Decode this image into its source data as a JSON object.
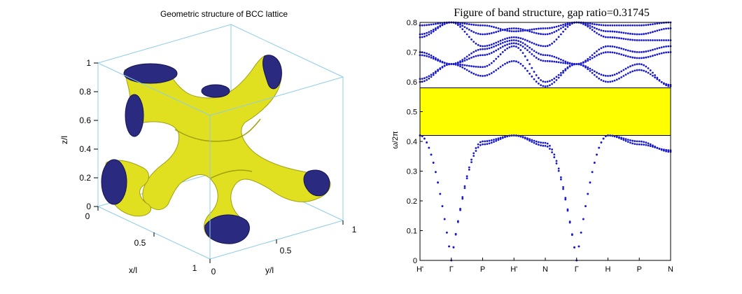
{
  "colors": {
    "surface": "#e0e020",
    "surface_shade": "#a0a010",
    "cap": "#2a2a80",
    "cap_dark": "#141450",
    "box_edge": "#8ecde6",
    "band_points": "#1a1acc",
    "gap_fill": "#ffff00",
    "axis": "#000000"
  },
  "chart_data": [
    {
      "type": "3d-surface",
      "title": "Geometric structure of BCC lattice",
      "xlabel": "x/l",
      "ylabel": "y/l",
      "zlabel": "z/l",
      "xlim": [
        0,
        1
      ],
      "ylim": [
        0,
        1
      ],
      "zlim": [
        0,
        1
      ],
      "x_ticks": [
        "0",
        "0.5",
        "1"
      ],
      "y_ticks": [
        "0",
        "0.5",
        "1"
      ],
      "z_ticks": [
        "0",
        "0.2",
        "0.4",
        "0.6",
        "0.8",
        "1"
      ]
    },
    {
      "type": "scatter",
      "title": "Figure of band structure, gap ratio=0.31745",
      "xlabel": "",
      "ylabel": "ω/2π",
      "ylim": [
        0,
        0.8
      ],
      "y_ticks": [
        "0",
        "0.1",
        "0.2",
        "0.3",
        "0.4",
        "0.5",
        "0.6",
        "0.7",
        "0.8"
      ],
      "k_labels": [
        "H'",
        "Γ",
        "P",
        "H'",
        "N",
        "Γ",
        "H",
        "P",
        "N"
      ],
      "k_positions": [
        0,
        1,
        2,
        3,
        4,
        5,
        6,
        7,
        8
      ],
      "gap": {
        "lower": 0.42,
        "upper": 0.58
      },
      "bands": [
        {
          "values": [
            0.42,
            0.0,
            0.39,
            0.42,
            0.385,
            0.0,
            0.42,
            0.39,
            0.37
          ]
        },
        {
          "values": [
            0.42,
            0.0,
            0.4,
            0.42,
            0.395,
            0.0,
            0.42,
            0.4,
            0.365
          ]
        },
        {
          "values": [
            0.6,
            0.66,
            0.62,
            0.67,
            0.585,
            0.66,
            0.6,
            0.64,
            0.59
          ]
        },
        {
          "values": [
            0.61,
            0.66,
            0.65,
            0.72,
            0.6,
            0.66,
            0.62,
            0.66,
            0.585
          ]
        },
        {
          "values": [
            0.69,
            0.66,
            0.69,
            0.73,
            0.67,
            0.66,
            0.7,
            0.68,
            0.7
          ]
        },
        {
          "values": [
            0.7,
            0.66,
            0.71,
            0.74,
            0.69,
            0.66,
            0.72,
            0.7,
            0.72
          ]
        },
        {
          "values": [
            0.75,
            0.8,
            0.72,
            0.75,
            0.72,
            0.8,
            0.75,
            0.74,
            0.74
          ]
        },
        {
          "values": [
            0.76,
            0.8,
            0.76,
            0.78,
            0.76,
            0.8,
            0.77,
            0.76,
            0.78
          ]
        },
        {
          "values": [
            0.79,
            0.8,
            0.79,
            0.77,
            0.78,
            0.8,
            0.79,
            0.79,
            0.8
          ]
        }
      ]
    }
  ]
}
